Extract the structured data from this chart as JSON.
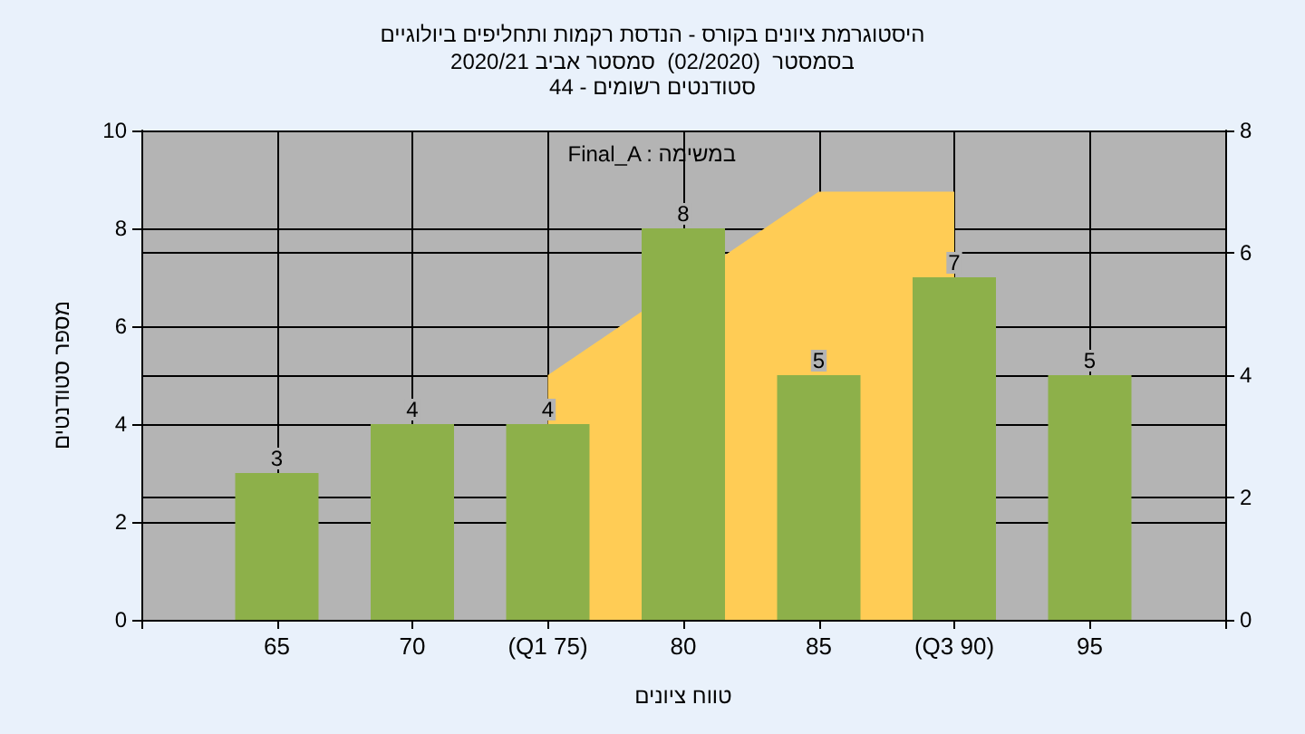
{
  "chart_data": {
    "type": "bar",
    "title": "היסטוגרמת ציונים בקורס - הנדסת רקמות ותחליפים ביולוגיים",
    "subtitle": "בסמסטר  (02/2020)  סמסטר אביב 2020/21\nסטודנטים רשומים - 44",
    "xlabel": "טווח ציונים",
    "ylabel": "מספר סטודנטים",
    "categories": [
      null,
      "65",
      "70",
      "(Q1 75)",
      "80",
      "85",
      "(Q3 90)",
      "95",
      null
    ],
    "series": [
      {
        "type": "area",
        "axis": "y2",
        "color": "#ffcc55",
        "values": [
          null,
          null,
          null,
          4,
          null,
          7,
          7,
          null,
          null
        ]
      },
      {
        "color": "#8db04a",
        "values": [
          null,
          3,
          4,
          4,
          8,
          5,
          7,
          5,
          null
        ],
        "value_labels": [
          null,
          "3",
          "4",
          "4",
          "8",
          "5",
          "7",
          "5",
          null
        ]
      }
    ],
    "ylim": [
      0,
      10
    ],
    "yticks": [
      0,
      2,
      4,
      6,
      8,
      10
    ],
    "y2lim": [
      0,
      8
    ],
    "y2ticks": [
      0,
      2,
      4,
      6,
      8
    ],
    "annotations": [
      "Final_A : במשימה"
    ],
    "grid": true
  }
}
